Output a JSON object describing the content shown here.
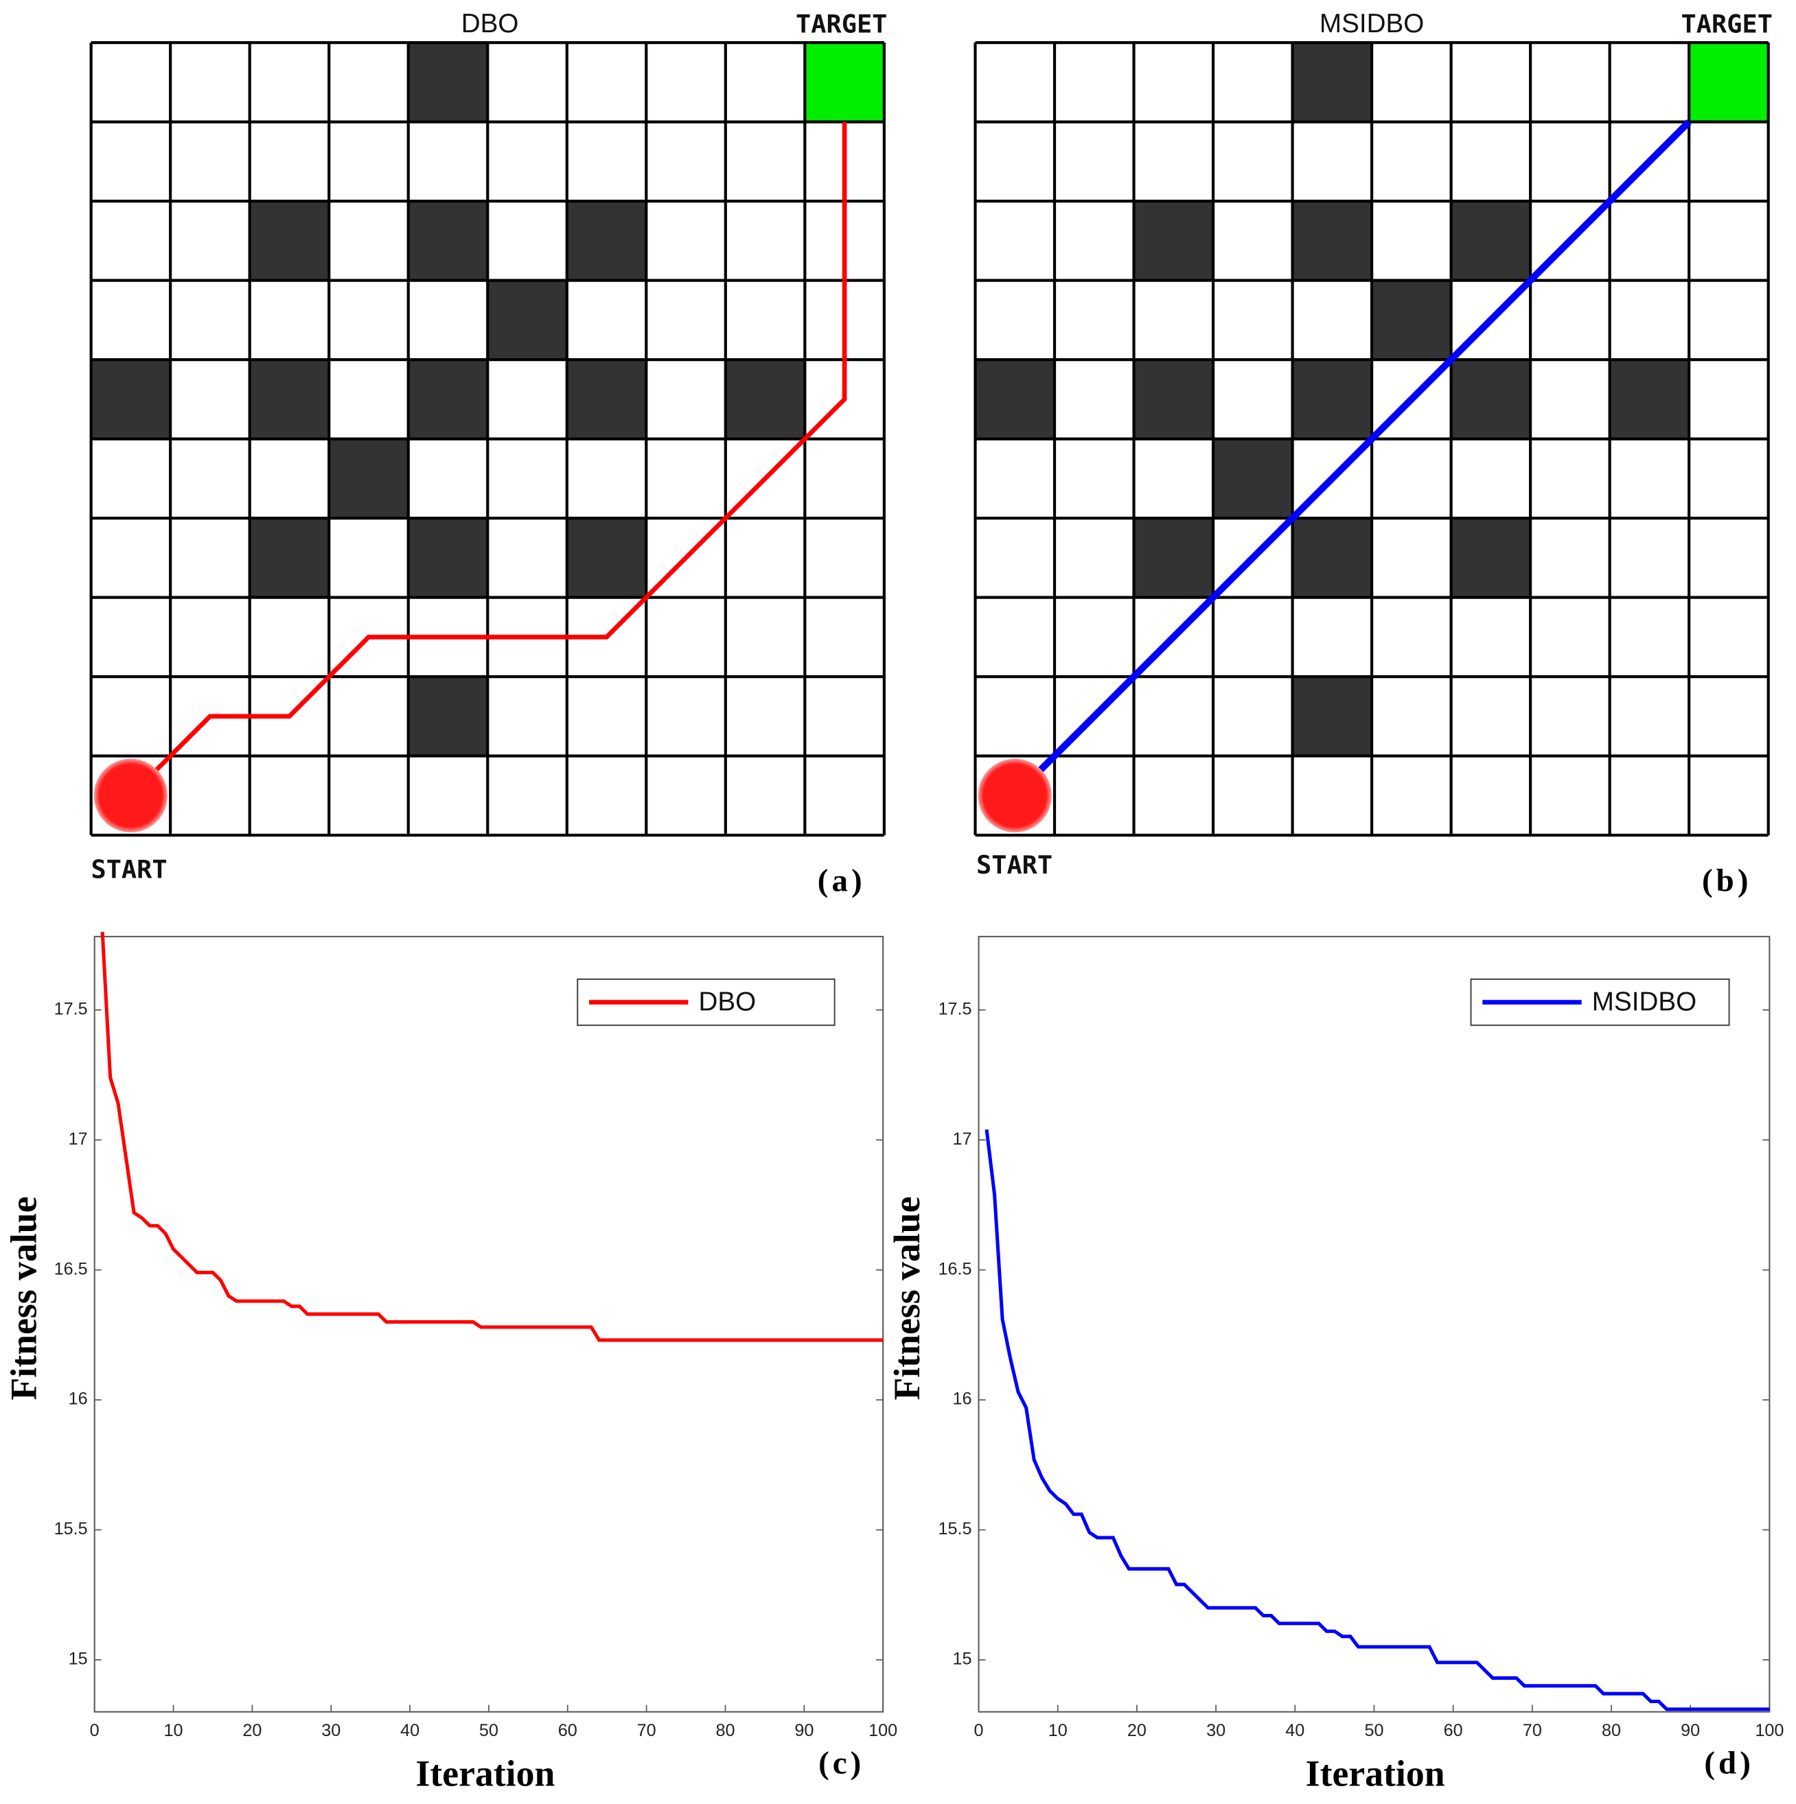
{
  "chart_data": [
    {
      "type": "grid",
      "title": "DBO",
      "target_label": "TARGET",
      "start_label": "START",
      "panel_label": "(a)",
      "obstacles": [
        [
          4,
          9
        ],
        [
          2,
          7
        ],
        [
          4,
          7
        ],
        [
          6,
          7
        ],
        [
          5,
          6
        ],
        [
          0,
          5
        ],
        [
          2,
          5
        ],
        [
          4,
          5
        ],
        [
          6,
          5
        ],
        [
          8,
          5
        ],
        [
          3,
          4
        ],
        [
          2,
          3
        ],
        [
          4,
          3
        ],
        [
          6,
          3
        ],
        [
          4,
          1
        ]
      ],
      "obstacle_color": "#333333",
      "target": [
        9,
        9
      ],
      "target_color": "#00ee00",
      "start": [
        0.5,
        0.5
      ],
      "start_color": "#ff1a1a",
      "path_x": [
        0.5,
        1.5,
        2.5,
        3.5,
        6.5,
        9.5,
        9.5
      ],
      "path_y": [
        0.5,
        1.5,
        1.5,
        2.5,
        2.5,
        5.5,
        9
      ],
      "path_color": "#ff0000"
    },
    {
      "type": "grid",
      "title": "MSIDBO",
      "target_label": "TARGET",
      "start_label": "START",
      "panel_label": "(b)",
      "obstacles": [
        [
          4,
          9
        ],
        [
          2,
          7
        ],
        [
          4,
          7
        ],
        [
          6,
          7
        ],
        [
          5,
          6
        ],
        [
          0,
          5
        ],
        [
          2,
          5
        ],
        [
          4,
          5
        ],
        [
          6,
          5
        ],
        [
          8,
          5
        ],
        [
          3,
          4
        ],
        [
          2,
          3
        ],
        [
          4,
          3
        ],
        [
          6,
          3
        ],
        [
          4,
          1
        ]
      ],
      "obstacle_color": "#333333",
      "target": [
        9,
        9
      ],
      "target_color": "#00ee00",
      "start": [
        0.5,
        0.5
      ],
      "start_color": "#ff1a1a",
      "path_x": [
        0.5,
        9
      ],
      "path_y": [
        0.5,
        9
      ],
      "path_color": "#0000ff"
    },
    {
      "type": "line",
      "panel_label": "(c)",
      "xlabel": "Iteration",
      "ylabel": "Fitness value",
      "legend": "upper right",
      "xlim": [
        0,
        100
      ],
      "xticks": [
        0,
        10,
        20,
        30,
        40,
        50,
        60,
        70,
        80,
        90,
        100
      ],
      "ylim": [
        14.8,
        17.8
      ],
      "yticks": [
        15,
        15.5,
        16,
        16.5,
        17,
        17.5
      ],
      "x": [
        1,
        2,
        3,
        4,
        5,
        6,
        7,
        8,
        9,
        10,
        11,
        12,
        13,
        14,
        15,
        16,
        17,
        18,
        19,
        20,
        21,
        22,
        23,
        24,
        25,
        26,
        27,
        28,
        29,
        30,
        31,
        32,
        33,
        34,
        35,
        36,
        37,
        38,
        39,
        40,
        41,
        42,
        43,
        44,
        45,
        46,
        47,
        48,
        49,
        50,
        51,
        52,
        53,
        54,
        55,
        56,
        57,
        58,
        59,
        60,
        61,
        62,
        63,
        64,
        65,
        66,
        67,
        68,
        69,
        70,
        71,
        72,
        73,
        74,
        75,
        76,
        77,
        78,
        79,
        80,
        81,
        82,
        83,
        84,
        85,
        86,
        87,
        88,
        89,
        90,
        91,
        92,
        93,
        94,
        95,
        96,
        97,
        98,
        99,
        100
      ],
      "series": [
        {
          "name": "DBO",
          "color": "#ff0000",
          "values": [
            17.8,
            17.24,
            17.14,
            16.93,
            16.72,
            16.7,
            16.67,
            16.67,
            16.64,
            16.58,
            16.55,
            16.52,
            16.49,
            16.49,
            16.49,
            16.46,
            16.4,
            16.38,
            16.38,
            16.38,
            16.38,
            16.38,
            16.38,
            16.38,
            16.36,
            16.36,
            16.33,
            16.33,
            16.33,
            16.33,
            16.33,
            16.33,
            16.33,
            16.33,
            16.33,
            16.33,
            16.3,
            16.3,
            16.3,
            16.3,
            16.3,
            16.3,
            16.3,
            16.3,
            16.3,
            16.3,
            16.3,
            16.3,
            16.28,
            16.28,
            16.28,
            16.28,
            16.28,
            16.28,
            16.28,
            16.28,
            16.28,
            16.28,
            16.28,
            16.28,
            16.28,
            16.28,
            16.28,
            16.23,
            16.23,
            16.23,
            16.23,
            16.23,
            16.23,
            16.23,
            16.23,
            16.23,
            16.23,
            16.23,
            16.23,
            16.23,
            16.23,
            16.23,
            16.23,
            16.23,
            16.23,
            16.23,
            16.23,
            16.23,
            16.23,
            16.23,
            16.23,
            16.23,
            16.23,
            16.23,
            16.23,
            16.23,
            16.23,
            16.23,
            16.23,
            16.23,
            16.23,
            16.23,
            16.23,
            16.23
          ]
        }
      ]
    },
    {
      "type": "line",
      "panel_label": "(d)",
      "xlabel": "Iteration",
      "ylabel": "Fitness value",
      "legend": "upper right",
      "xlim": [
        0,
        100
      ],
      "xticks": [
        0,
        10,
        20,
        30,
        40,
        50,
        60,
        70,
        80,
        90,
        100
      ],
      "ylim": [
        14.8,
        17.8
      ],
      "yticks": [
        15,
        15.5,
        16,
        16.5,
        17,
        17.5
      ],
      "x": [
        1,
        2,
        3,
        4,
        5,
        6,
        7,
        8,
        9,
        10,
        11,
        12,
        13,
        14,
        15,
        16,
        17,
        18,
        19,
        20,
        21,
        22,
        23,
        24,
        25,
        26,
        27,
        28,
        29,
        30,
        31,
        32,
        33,
        34,
        35,
        36,
        37,
        38,
        39,
        40,
        41,
        42,
        43,
        44,
        45,
        46,
        47,
        48,
        49,
        50,
        51,
        52,
        53,
        54,
        55,
        56,
        57,
        58,
        59,
        60,
        61,
        62,
        63,
        64,
        65,
        66,
        67,
        68,
        69,
        70,
        71,
        72,
        73,
        74,
        75,
        76,
        77,
        78,
        79,
        80,
        81,
        82,
        83,
        84,
        85,
        86,
        87,
        88,
        89,
        90,
        91,
        92,
        93,
        94,
        95,
        96,
        97,
        98,
        99,
        100
      ],
      "series": [
        {
          "name": "MSIDBO",
          "color": "#0000ff",
          "values": [
            17.04,
            16.79,
            16.31,
            16.16,
            16.03,
            15.97,
            15.77,
            15.7,
            15.65,
            15.62,
            15.6,
            15.56,
            15.56,
            15.49,
            15.47,
            15.47,
            15.47,
            15.4,
            15.35,
            15.35,
            15.35,
            15.35,
            15.35,
            15.35,
            15.29,
            15.29,
            15.26,
            15.23,
            15.2,
            15.2,
            15.2,
            15.2,
            15.2,
            15.2,
            15.2,
            15.17,
            15.17,
            15.14,
            15.14,
            15.14,
            15.14,
            15.14,
            15.14,
            15.11,
            15.11,
            15.09,
            15.09,
            15.05,
            15.05,
            15.05,
            15.05,
            15.05,
            15.05,
            15.05,
            15.05,
            15.05,
            15.05,
            14.99,
            14.99,
            14.99,
            14.99,
            14.99,
            14.99,
            14.96,
            14.93,
            14.93,
            14.93,
            14.93,
            14.9,
            14.9,
            14.9,
            14.9,
            14.9,
            14.9,
            14.9,
            14.9,
            14.9,
            14.9,
            14.87,
            14.87,
            14.87,
            14.87,
            14.87,
            14.87,
            14.84,
            14.84,
            14.81,
            14.81,
            14.81,
            14.81,
            14.81,
            14.81,
            14.81,
            14.81,
            14.81,
            14.81,
            14.81,
            14.81,
            14.81,
            14.81
          ]
        }
      ]
    }
  ]
}
